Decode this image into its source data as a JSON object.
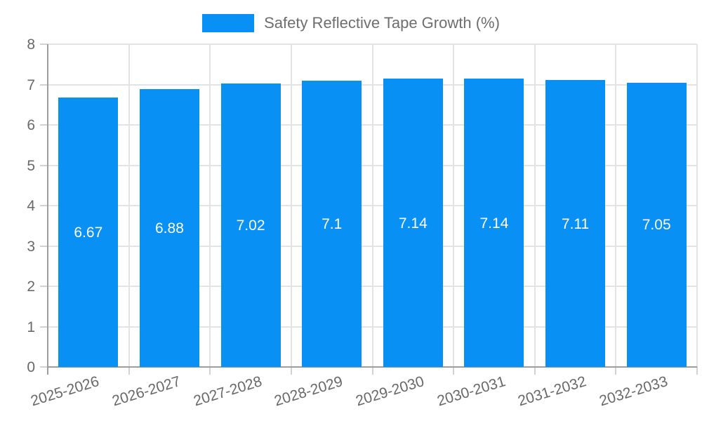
{
  "chart_data": {
    "type": "bar",
    "title": "Safety Reflective Tape Growth (%)",
    "categories": [
      "2025-2026",
      "2026-2027",
      "2027-2028",
      "2028-2029",
      "2029-2030",
      "2030-2031",
      "2031-2032",
      "2032-2033"
    ],
    "values": [
      6.67,
      6.88,
      7.02,
      7.1,
      7.14,
      7.14,
      7.11,
      7.05
    ],
    "bar_labels": [
      "6.67",
      "6.88",
      "7.02",
      "7.1",
      "7.14",
      "7.14",
      "7.11",
      "7.05"
    ],
    "xlabel": "",
    "ylabel": "",
    "ylim": [
      0,
      8
    ],
    "yticks": [
      0,
      1,
      2,
      3,
      4,
      5,
      6,
      7,
      8
    ],
    "grid": true,
    "legend_position": "top",
    "colors": {
      "bar": "#0990F5",
      "grid": "#e3e3e3",
      "tick_mark": "#d2d2d2",
      "axis": "#9e9e9e",
      "tick_label": "#696969",
      "legend_text": "#6e6e6e",
      "bar_label": "#ffffff",
      "background": "#ffffff"
    }
  }
}
